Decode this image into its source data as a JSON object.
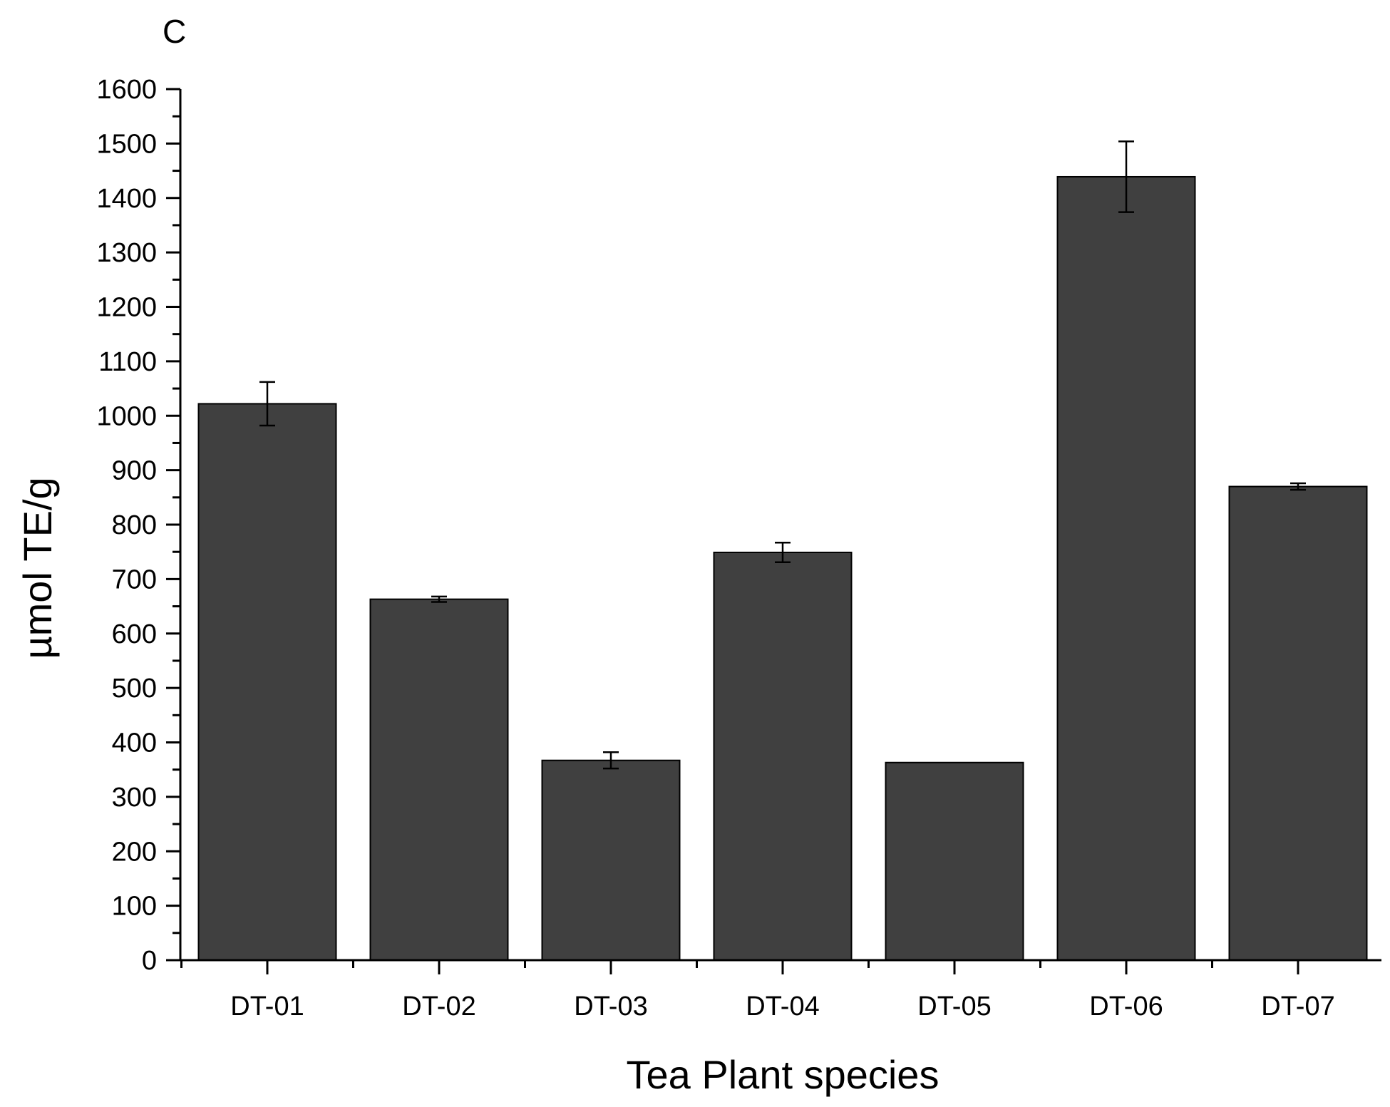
{
  "chart_data": {
    "type": "bar",
    "panel_label": "C",
    "title": "",
    "xlabel": "Tea Plant species",
    "ylabel": "µmol TE/g",
    "categories": [
      "DT-01",
      "DT-02",
      "DT-03",
      "DT-04",
      "DT-05",
      "DT-06",
      "DT-07"
    ],
    "values": [
      1022,
      663,
      367,
      749,
      363,
      1439,
      870
    ],
    "errors": [
      40,
      5,
      15,
      18,
      0,
      65,
      6
    ],
    "ylim": [
      0,
      1600
    ],
    "yticks": [
      0,
      100,
      200,
      300,
      400,
      500,
      600,
      700,
      800,
      900,
      1000,
      1100,
      1200,
      1300,
      1400,
      1500,
      1600
    ],
    "bar_color": "#404040",
    "grid": false,
    "legend": "none"
  }
}
